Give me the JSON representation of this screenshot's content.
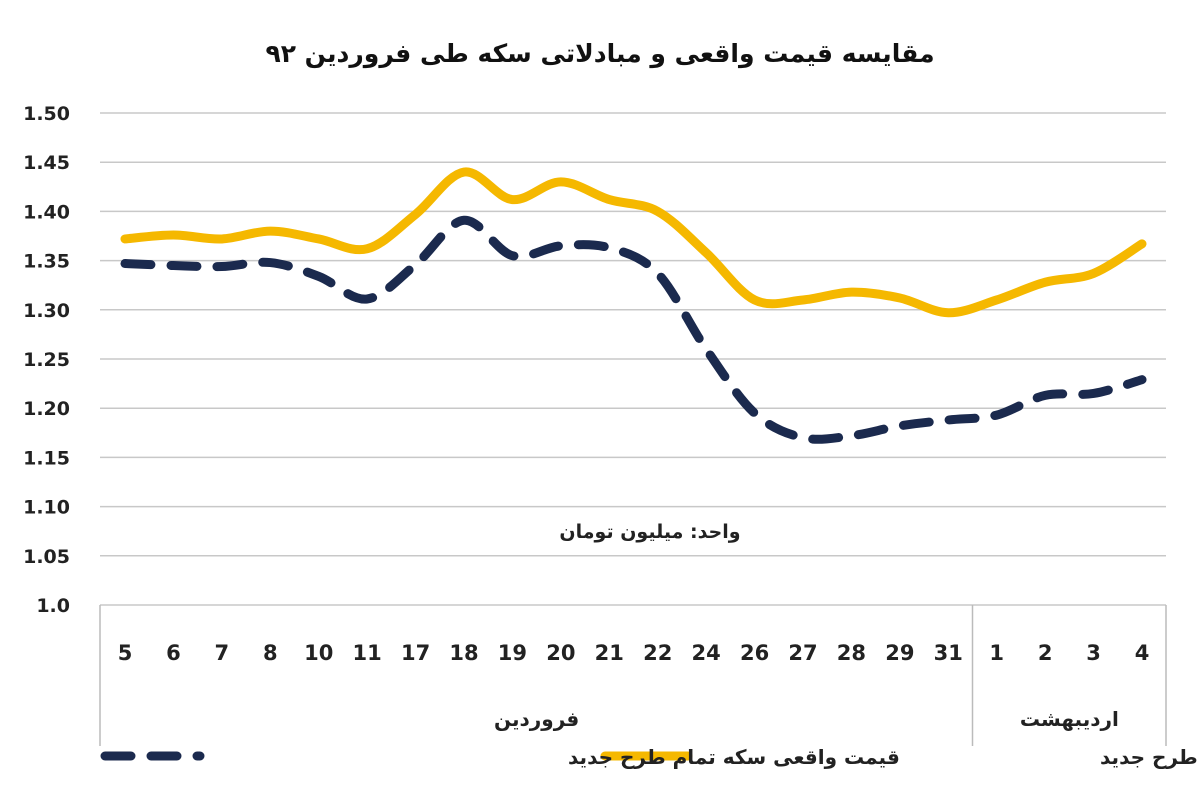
{
  "chart_data": {
    "type": "line",
    "title": "مقایسه قیمت واقعی و مبادلاتی سکه طی فروردین ۹۲",
    "unit_label": "واحد: میلیون تومان",
    "ylim": [
      1.0,
      1.5
    ],
    "yticks": [
      "1.50",
      "1.45",
      "1.40",
      "1.35",
      "1.30",
      "1.25",
      "1.20",
      "1.15",
      "1.10",
      "1.05",
      "1.0"
    ],
    "grid": true,
    "categories": [
      "5",
      "6",
      "7",
      "8",
      "10",
      "11",
      "17",
      "18",
      "19",
      "20",
      "21",
      "22",
      "24",
      "26",
      "27",
      "28",
      "29",
      "31",
      "1",
      "2",
      "3",
      "4"
    ],
    "groups": [
      {
        "label": "فروردین",
        "count": 18
      },
      {
        "label": "اردیبهشت",
        "count": 4
      }
    ],
    "series": [
      {
        "name": "قیمت مبادلاتی سکه تمام طرح جدید",
        "color": "#F5B800",
        "style": "solid",
        "values": [
          1.372,
          1.376,
          1.372,
          1.38,
          1.372,
          1.362,
          1.397,
          1.44,
          1.412,
          1.43,
          1.412,
          1.4,
          1.358,
          1.31,
          1.31,
          1.318,
          1.312,
          1.297,
          1.31,
          1.328,
          1.337,
          1.367
        ]
      },
      {
        "name": "قیمت واقعی سکه تمام طرح جدید",
        "color": "#1B2A4E",
        "style": "dashed",
        "values": [
          1.347,
          1.345,
          1.344,
          1.348,
          1.334,
          1.311,
          1.346,
          1.391,
          1.355,
          1.365,
          1.363,
          1.337,
          1.26,
          1.195,
          1.17,
          1.172,
          1.182,
          1.188,
          1.193,
          1.213,
          1.215,
          1.229
        ]
      }
    ],
    "legend_position": "bottom"
  }
}
